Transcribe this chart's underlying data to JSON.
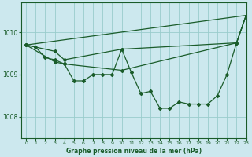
{
  "title": "Graphe pression niveau de la mer (hPa)",
  "background_color": "#cce8ee",
  "plot_bg_color": "#cce8ee",
  "grid_color": "#99cccc",
  "line_color": "#1a5c2a",
  "xlim": [
    -0.5,
    23
  ],
  "ylim": [
    1007.5,
    1010.7
  ],
  "yticks": [
    1008,
    1009,
    1010
  ],
  "xticks": [
    0,
    1,
    2,
    3,
    4,
    5,
    6,
    7,
    8,
    9,
    10,
    11,
    12,
    13,
    14,
    15,
    16,
    17,
    18,
    19,
    20,
    21,
    22,
    23
  ],
  "series_data": {
    "line1_x": [
      0,
      1,
      2,
      3,
      4,
      5,
      6,
      7,
      8,
      9,
      10,
      11,
      12,
      13,
      14,
      15,
      16,
      17,
      18,
      19,
      20,
      21,
      22,
      23
    ],
    "line1_y": [
      1009.7,
      1009.65,
      1009.4,
      1009.35,
      1009.25,
      1008.85,
      1008.85,
      1009.0,
      1009.0,
      1009.0,
      1009.6,
      1009.05,
      1008.55,
      1008.6,
      1008.2,
      1008.2,
      1008.35,
      1008.3,
      1008.3,
      1008.3,
      1008.5,
      1009.0,
      1009.75,
      1010.4
    ],
    "line2_x": [
      0,
      3,
      4,
      10,
      22,
      23
    ],
    "line2_y": [
      1009.7,
      1009.55,
      1009.35,
      1009.6,
      1009.75,
      1010.4
    ],
    "line3_x": [
      0,
      3,
      4,
      10,
      22,
      23
    ],
    "line3_y": [
      1009.7,
      1009.3,
      1009.25,
      1009.1,
      1009.75,
      1010.4
    ],
    "line4_x": [
      0,
      23
    ],
    "line4_y": [
      1009.7,
      1010.4
    ]
  }
}
